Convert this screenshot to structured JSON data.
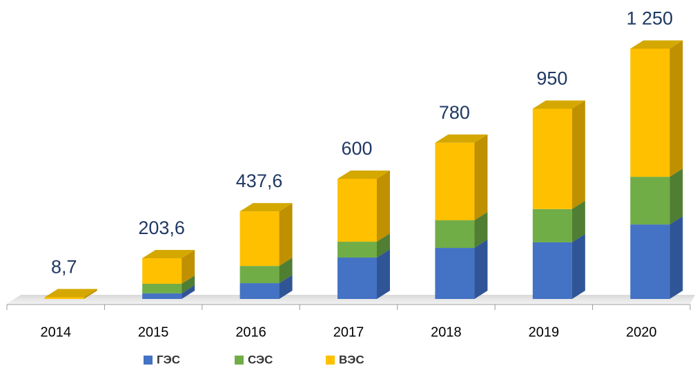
{
  "chart_data": {
    "type": "bar3d_stacked",
    "categories": [
      "2014",
      "2015",
      "2016",
      "2017",
      "2018",
      "2019",
      "2020"
    ],
    "series": [
      {
        "name": "ГЭС",
        "color": "#4472c4",
        "side": "#2f5597",
        "values": [
          0,
          28,
          79,
          207,
          255,
          283,
          372
        ]
      },
      {
        "name": "СЭС",
        "color": "#70ad47",
        "side": "#507e32",
        "values": [
          0,
          48,
          86,
          79,
          138,
          166,
          238
        ]
      },
      {
        "name": "ВЭС",
        "color": "#ffc000",
        "side": "#bf9000",
        "values": [
          8.7,
          127.6,
          272.6,
          314,
          387,
          501,
          640
        ]
      }
    ],
    "totals": [
      8.7,
      203.6,
      437.6,
      600,
      780,
      950,
      1250
    ],
    "total_labels": [
      "8,7",
      "203,6",
      "437,6",
      "600",
      "780",
      "950",
      "1 250"
    ],
    "top_color": "#d4a800",
    "ylim": [
      0,
      1400
    ]
  }
}
